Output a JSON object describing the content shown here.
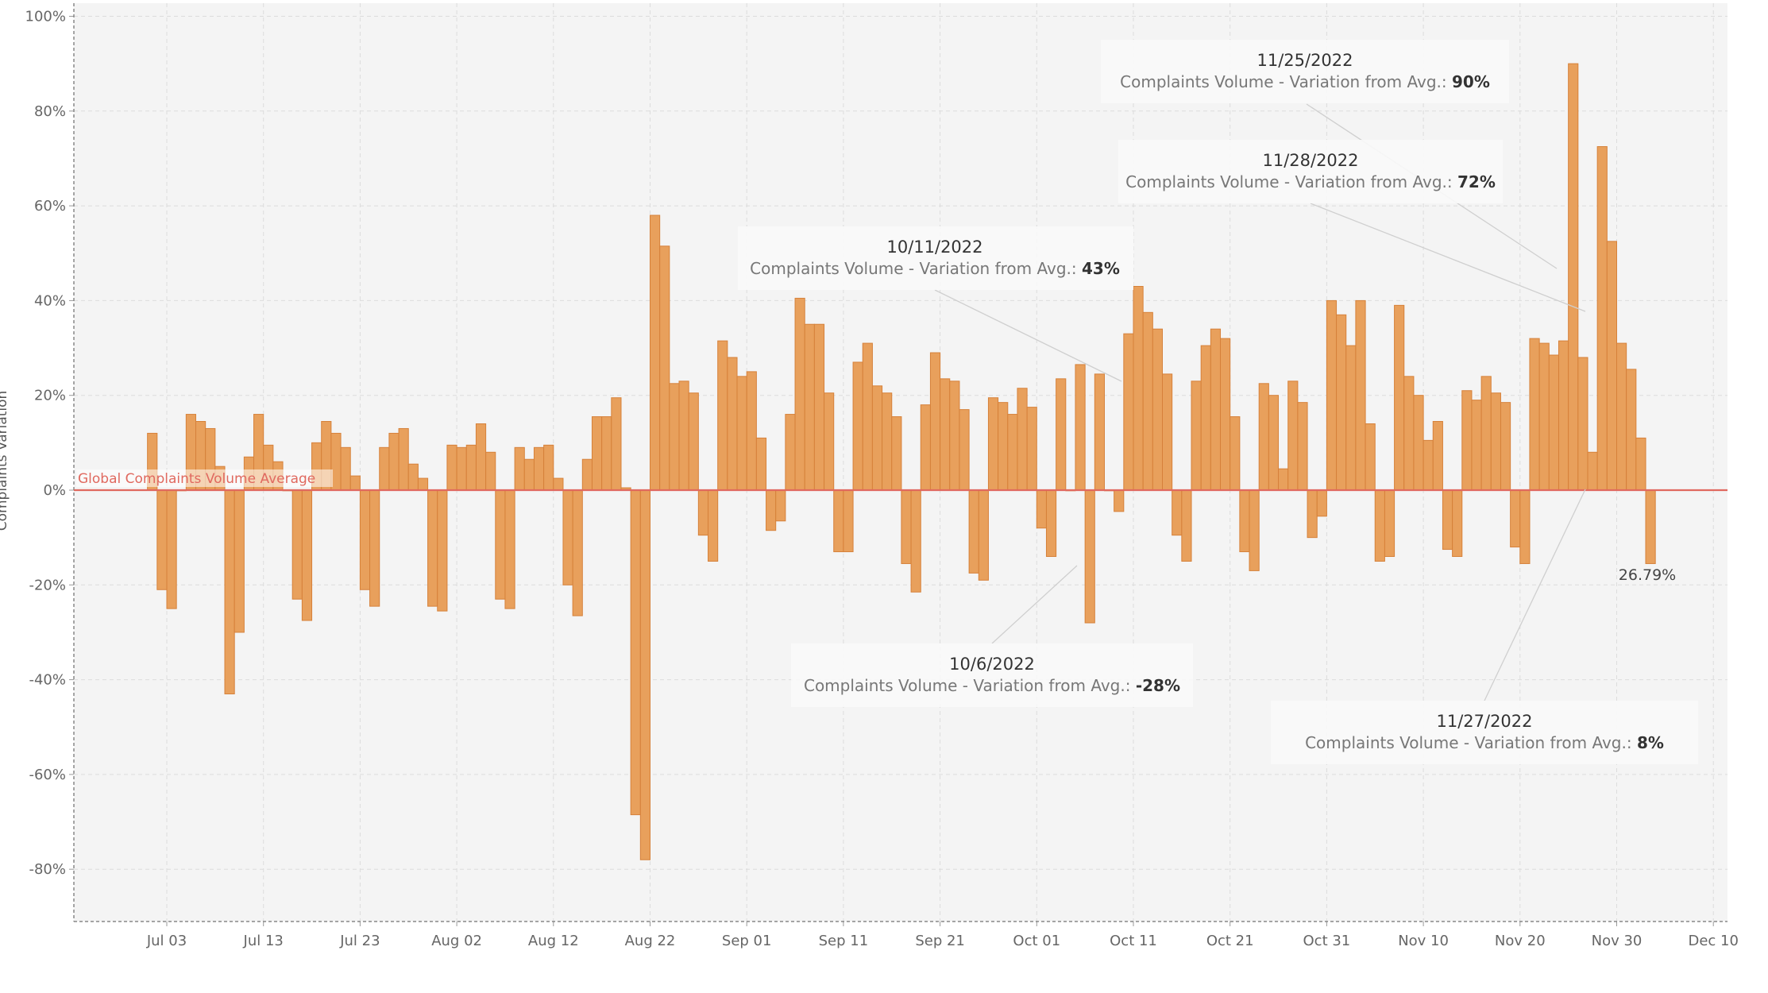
{
  "chart_data": {
    "type": "bar",
    "ylabel": "Complaints Variation",
    "ylim": [
      -90,
      100
    ],
    "y_ticks": [
      {
        "value": 100,
        "label": "100%"
      },
      {
        "value": 80,
        "label": "80%"
      },
      {
        "value": 60,
        "label": "60%"
      },
      {
        "value": 40,
        "label": "40%"
      },
      {
        "value": 20,
        "label": "20%"
      },
      {
        "value": 0,
        "label": "0%"
      },
      {
        "value": -20,
        "label": "-20%"
      },
      {
        "value": -40,
        "label": "-40%"
      },
      {
        "value": -60,
        "label": "-60%"
      },
      {
        "value": -80,
        "label": "-80%"
      }
    ],
    "x_ticks": [
      {
        "date": "2022-07-03",
        "label": "Jul 03"
      },
      {
        "date": "2022-07-13",
        "label": "Jul 13"
      },
      {
        "date": "2022-07-23",
        "label": "Jul 23"
      },
      {
        "date": "2022-08-02",
        "label": "Aug 02"
      },
      {
        "date": "2022-08-12",
        "label": "Aug 12"
      },
      {
        "date": "2022-08-22",
        "label": "Aug 22"
      },
      {
        "date": "2022-09-01",
        "label": "Sep 01"
      },
      {
        "date": "2022-09-11",
        "label": "Sep 11"
      },
      {
        "date": "2022-09-21",
        "label": "Sep 21"
      },
      {
        "date": "2022-10-01",
        "label": "Oct 01"
      },
      {
        "date": "2022-10-11",
        "label": "Oct 11"
      },
      {
        "date": "2022-10-21",
        "label": "Oct 21"
      },
      {
        "date": "2022-10-31",
        "label": "Oct 31"
      },
      {
        "date": "2022-11-10",
        "label": "Nov 10"
      },
      {
        "date": "2022-11-20",
        "label": "Nov 20"
      },
      {
        "date": "2022-11-30",
        "label": "Nov 30"
      },
      {
        "date": "2022-12-10",
        "label": "Dec 10"
      }
    ],
    "x_start_date": "2022-07-01",
    "x_end_date": "2022-12-10",
    "reference_line": {
      "value": 0,
      "label": "Global Complaints Volume Average",
      "color": "#e0695f"
    },
    "bar_color": "#e8a05c",
    "bar_edge_color": "#d6813a",
    "series": [
      {
        "name": "Complaints Volume - Variation from Avg.",
        "x_start": "2022-07-01",
        "values": [
          12,
          -21,
          -25,
          0,
          16,
          14.5,
          13,
          5,
          -43,
          -30,
          7,
          16,
          9.5,
          6,
          0,
          -23,
          -27.5,
          10,
          14.5,
          12,
          9,
          3,
          -21,
          -24.5,
          9,
          12,
          13,
          5.5,
          2.5,
          -24.5,
          -25.5,
          9.5,
          9,
          9.5,
          14,
          8,
          -23,
          -25,
          9,
          6.5,
          9,
          9.5,
          2.5,
          -20,
          -26.5,
          6.5,
          15.5,
          15.5,
          19.5,
          0.5,
          -68.5,
          -78,
          58,
          51.5,
          22.5,
          23,
          20.5,
          -9.5,
          -15,
          31.5,
          28,
          24,
          25,
          11,
          -8.5,
          -6.5,
          16,
          40.5,
          35,
          35,
          20.5,
          -13,
          -13,
          27,
          31,
          22,
          20.5,
          15.5,
          -15.5,
          -21.5,
          18,
          29,
          23.5,
          23,
          17,
          -17.5,
          -19,
          19.5,
          18.5,
          16,
          21.5,
          17.5,
          -8,
          -14,
          23.5,
          0,
          26.5,
          -28,
          24.5,
          0,
          -4.5,
          33,
          43,
          37.5,
          34,
          24.5,
          -9.5,
          -15,
          23,
          30.5,
          34,
          32,
          15.5,
          -13,
          -17,
          22.5,
          20,
          4.5,
          23,
          18.5,
          -10,
          -5.5,
          40,
          37,
          30.5,
          40,
          14,
          -15,
          -14,
          39,
          24,
          20,
          10.5,
          14.5,
          -12.5,
          -14,
          21,
          19,
          24,
          20.5,
          18.5,
          -12,
          -15.5,
          32,
          31,
          28.5,
          31.5,
          90,
          28,
          8,
          72.5,
          52.5,
          31,
          25.5,
          11,
          -15.5
        ]
      }
    ],
    "annotations": [
      {
        "date_label": "11/25/2022",
        "text": "Complaints Volume - Variation from Avg.:",
        "value_label": "90%"
      },
      {
        "date_label": "11/28/2022",
        "text": "Complaints Volume - Variation from Avg.:",
        "value_label": "72%"
      },
      {
        "date_label": "10/11/2022",
        "text": "Complaints Volume - Variation from Avg.:",
        "value_label": "43%"
      },
      {
        "date_label": "10/6/2022",
        "text": "Complaints Volume - Variation from Avg.:",
        "value_label": "-28%"
      },
      {
        "date_label": "11/27/2022",
        "text": "Complaints Volume - Variation from Avg.:",
        "value_label": "8%"
      }
    ],
    "end_label": "26.79%"
  }
}
